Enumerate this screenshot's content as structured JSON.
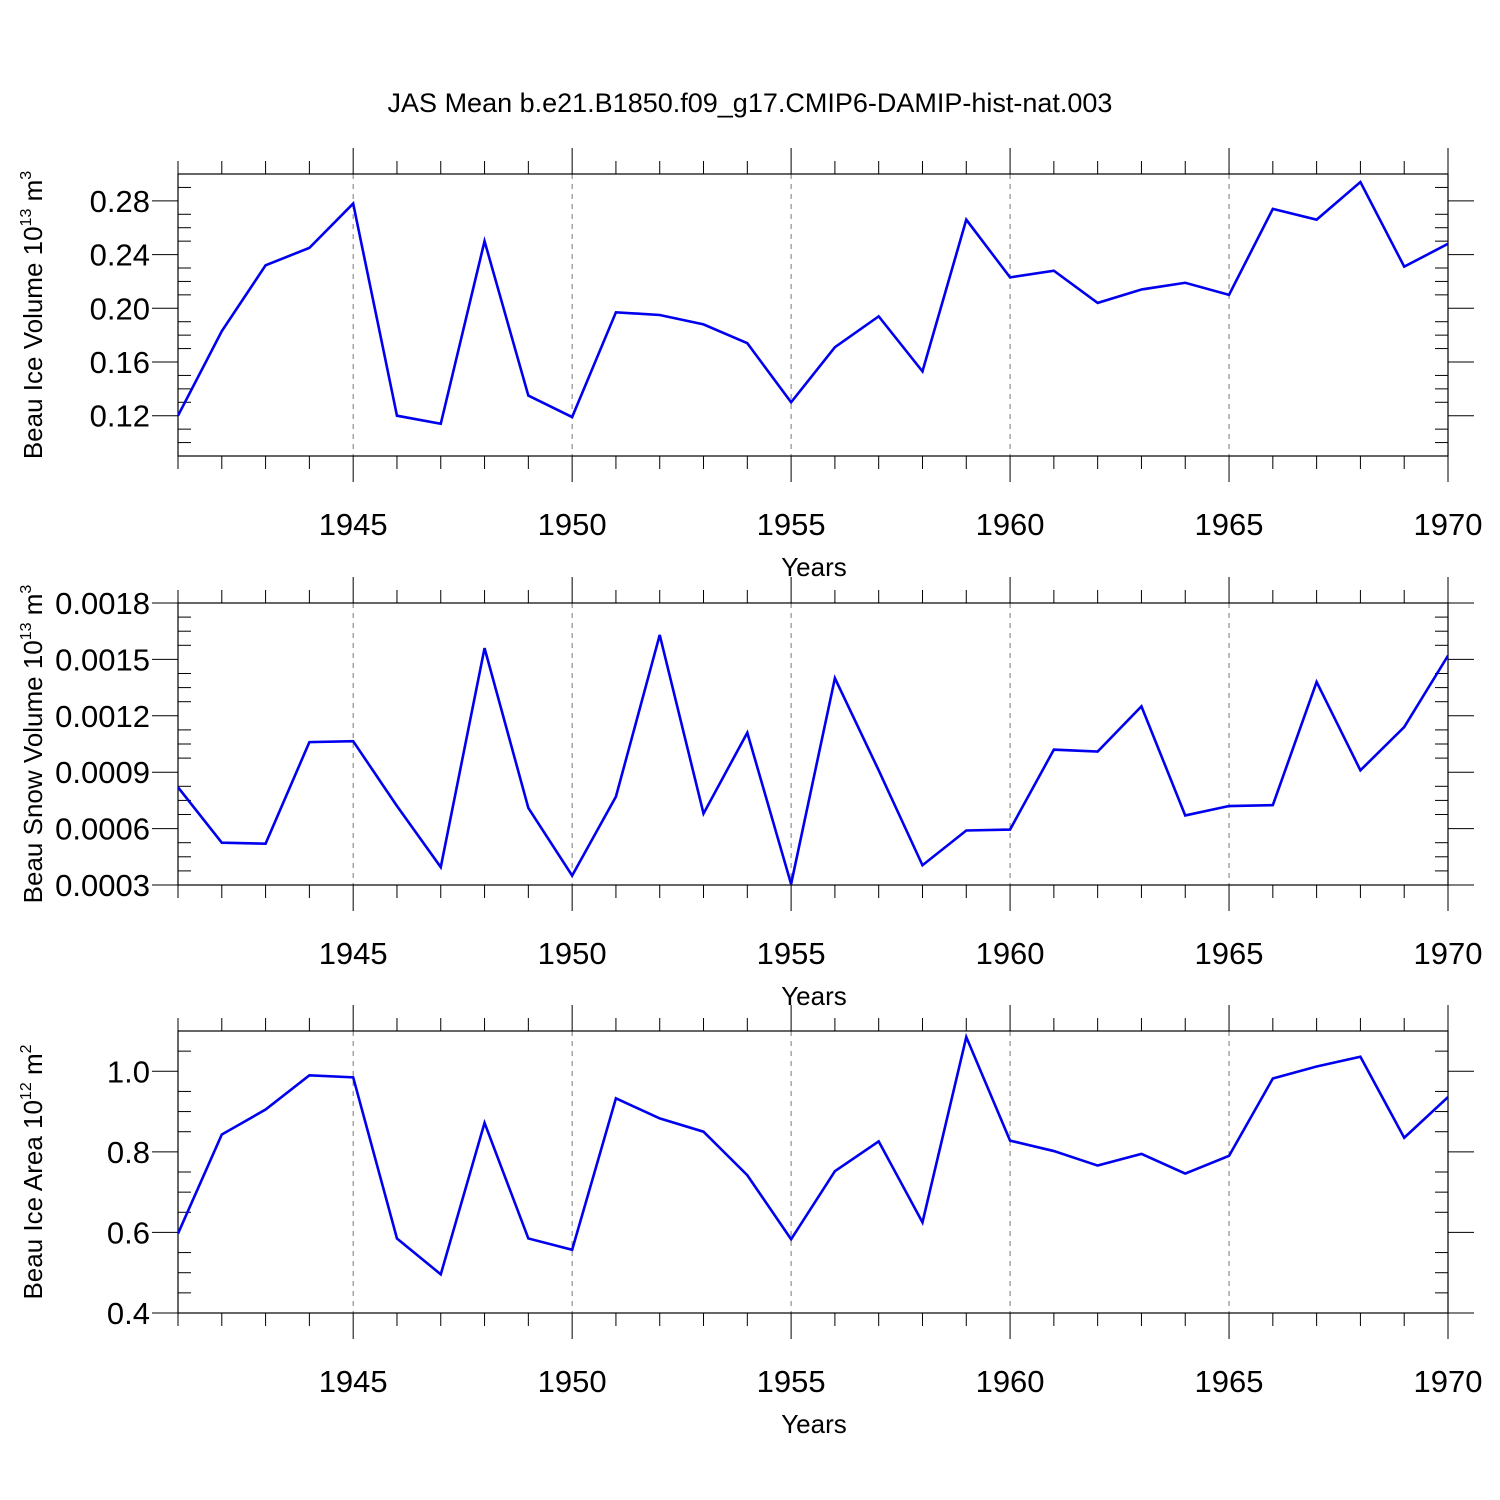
{
  "figure": {
    "title": "JAS Mean b.e21.B1850.f09_g17.CMIP6-DAMIP-hist-nat.003"
  },
  "colors": {
    "line": "#0000ee",
    "grid": "#777777",
    "axis": "#000000"
  },
  "chart_data": [
    {
      "type": "line",
      "id": "ice-volume",
      "ylabel": {
        "main": "Beau Ice Volume 10",
        "sup1": "13",
        "unit": " m",
        "sup2": "3"
      },
      "xlabel": "Years",
      "xlim": [
        1941,
        1970
      ],
      "ylim": [
        0.09,
        0.3
      ],
      "yticks": [
        0.12,
        0.16,
        0.2,
        0.24,
        0.28
      ],
      "ytick_labels": [
        "0.12",
        "0.16",
        "0.20",
        "0.24",
        "0.28"
      ],
      "xticks": [
        1945,
        1950,
        1955,
        1960,
        1965,
        1970
      ],
      "xtick_labels": [
        "1945",
        "1950",
        "1955",
        "1960",
        "1965",
        "1970"
      ],
      "x": [
        1941,
        1942,
        1943,
        1944,
        1945,
        1946,
        1947,
        1948,
        1949,
        1950,
        1951,
        1952,
        1953,
        1954,
        1955,
        1956,
        1957,
        1958,
        1959,
        1960,
        1961,
        1962,
        1963,
        1964,
        1965,
        1966,
        1967,
        1968,
        1969,
        1970
      ],
      "values": [
        0.12,
        0.183,
        0.232,
        0.245,
        0.278,
        0.12,
        0.114,
        0.25,
        0.135,
        0.119,
        0.197,
        0.195,
        0.188,
        0.174,
        0.13,
        0.171,
        0.194,
        0.153,
        0.266,
        0.223,
        0.228,
        0.204,
        0.214,
        0.219,
        0.21,
        0.274,
        0.266,
        0.294,
        0.231,
        0.248
      ]
    },
    {
      "type": "line",
      "id": "snow-volume",
      "ylabel": {
        "main": "Beau Snow Volume 10",
        "sup1": "13",
        "unit": " m",
        "sup2": "3"
      },
      "xlabel": "Years",
      "xlim": [
        1941,
        1970
      ],
      "ylim": [
        0.0003,
        0.0018
      ],
      "yticks": [
        0.0003,
        0.0006,
        0.0009,
        0.0012,
        0.0015,
        0.0018
      ],
      "ytick_labels": [
        "0.0003",
        "0.0006",
        "0.0009",
        "0.0012",
        "0.0015",
        "0.0018"
      ],
      "xticks": [
        1945,
        1950,
        1955,
        1960,
        1965,
        1970
      ],
      "xtick_labels": [
        "1945",
        "1950",
        "1955",
        "1960",
        "1965",
        "1970"
      ],
      "x": [
        1941,
        1942,
        1943,
        1944,
        1945,
        1946,
        1947,
        1948,
        1949,
        1950,
        1951,
        1952,
        1953,
        1954,
        1955,
        1956,
        1957,
        1958,
        1959,
        1960,
        1961,
        1962,
        1963,
        1964,
        1965,
        1966,
        1967,
        1968,
        1969,
        1970
      ],
      "values": [
        0.00082,
        0.000525,
        0.00052,
        0.00106,
        0.001065,
        0.00072,
        0.000395,
        0.00156,
        0.00071,
        0.00035,
        0.00077,
        0.00163,
        0.00068,
        0.00111,
        0.000305,
        0.0014,
        0.00091,
        0.000405,
        0.00059,
        0.000595,
        0.00102,
        0.00101,
        0.00125,
        0.00067,
        0.00072,
        0.000725,
        0.00138,
        0.00091,
        0.00114,
        0.00152
      ]
    },
    {
      "type": "line",
      "id": "ice-area",
      "ylabel": {
        "main": "Beau Ice Area 10",
        "sup1": "12",
        "unit": " m",
        "sup2": "2"
      },
      "xlabel": "Years",
      "xlim": [
        1941,
        1970
      ],
      "ylim": [
        0.4,
        1.1
      ],
      "yticks": [
        0.4,
        0.6,
        0.8,
        1.0
      ],
      "ytick_labels": [
        "0.4",
        "0.6",
        "0.8",
        "1.0"
      ],
      "xticks": [
        1945,
        1950,
        1955,
        1960,
        1965,
        1970
      ],
      "xtick_labels": [
        "1945",
        "1950",
        "1955",
        "1960",
        "1965",
        "1970"
      ],
      "x": [
        1941,
        1942,
        1943,
        1944,
        1945,
        1946,
        1947,
        1948,
        1949,
        1950,
        1951,
        1952,
        1953,
        1954,
        1955,
        1956,
        1957,
        1958,
        1959,
        1960,
        1961,
        1962,
        1963,
        1964,
        1965,
        1966,
        1967,
        1968,
        1969,
        1970
      ],
      "values": [
        0.597,
        0.843,
        0.905,
        0.99,
        0.985,
        0.585,
        0.496,
        0.872,
        0.585,
        0.557,
        0.933,
        0.883,
        0.85,
        0.742,
        0.583,
        0.752,
        0.826,
        0.625,
        1.085,
        0.828,
        0.802,
        0.766,
        0.795,
        0.746,
        0.79,
        0.982,
        1.012,
        1.036,
        0.835,
        0.936
      ]
    }
  ]
}
